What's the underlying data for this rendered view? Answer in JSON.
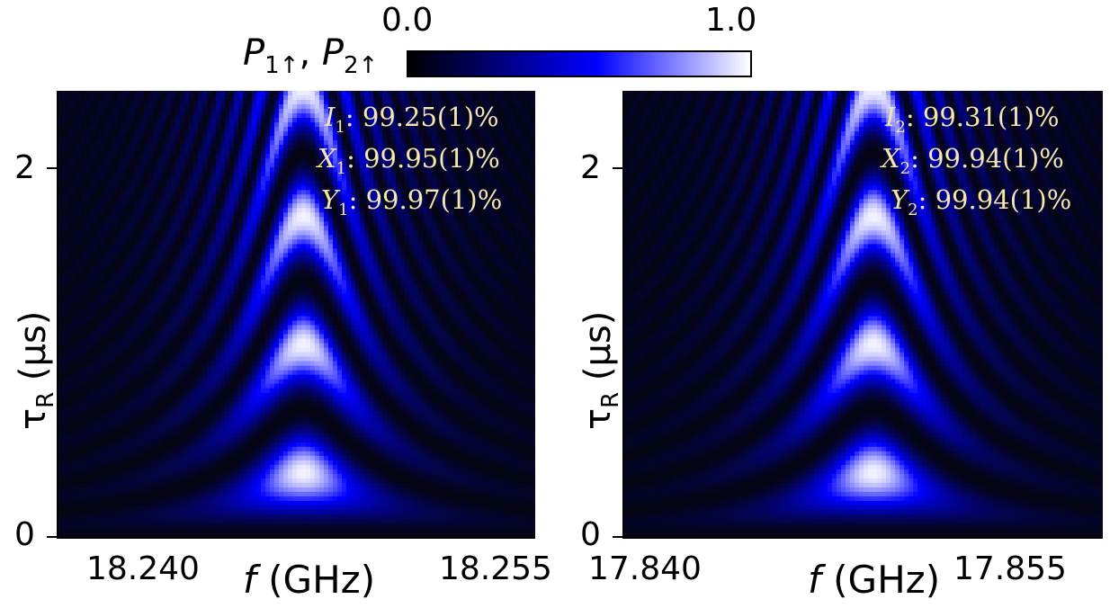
{
  "colorbar": {
    "label_p": "P",
    "label_sub1": "1↑",
    "label_sep": ", ",
    "label_sub2": "2↑",
    "min_label": "0.0",
    "max_label": "1.0",
    "colors": [
      "#000000",
      "#0000ff",
      "#ffffff"
    ]
  },
  "chart_data": [
    {
      "type": "heatmap",
      "title": "",
      "xlabel_var": "f",
      "xlabel_unit": "(GHz)",
      "ylabel_var": "τ",
      "ylabel_sub": "R",
      "ylabel_unit": "(μs)",
      "x_ticks": [
        "18.240",
        "18.255"
      ],
      "y_ticks": [
        "0",
        "2"
      ],
      "xlim": [
        18.236,
        18.258
      ],
      "ylim": [
        0,
        2.4
      ],
      "resonance_center_GHz": 18.2473,
      "colorscale_range": [
        0.0,
        1.0
      ],
      "annotations": [
        {
          "name": "I",
          "sub": "1",
          "value": ": 99.25(1)%"
        },
        {
          "name": "X",
          "sub": "1",
          "value": ": 99.95(1)%"
        },
        {
          "name": "Y",
          "sub": "1",
          "value": ": 99.97(1)%"
        }
      ]
    },
    {
      "type": "heatmap",
      "title": "",
      "xlabel_var": "f",
      "xlabel_unit": "(GHz)",
      "ylabel_var": "τ",
      "ylabel_sub": "R",
      "ylabel_unit": "(μs)",
      "x_ticks": [
        "17.840",
        "17.855"
      ],
      "y_ticks": [
        "0",
        "2"
      ],
      "xlim": [
        17.839,
        17.8605
      ],
      "ylim": [
        0,
        2.4
      ],
      "resonance_center_GHz": 17.8502,
      "colorscale_range": [
        0.0,
        1.0
      ],
      "annotations": [
        {
          "name": "I",
          "sub": "2",
          "value": ": 99.31(1)%"
        },
        {
          "name": "X",
          "sub": "2",
          "value": ": 99.94(1)%"
        },
        {
          "name": "Y",
          "sub": "2",
          "value": ": 99.94(1)%"
        }
      ]
    }
  ]
}
